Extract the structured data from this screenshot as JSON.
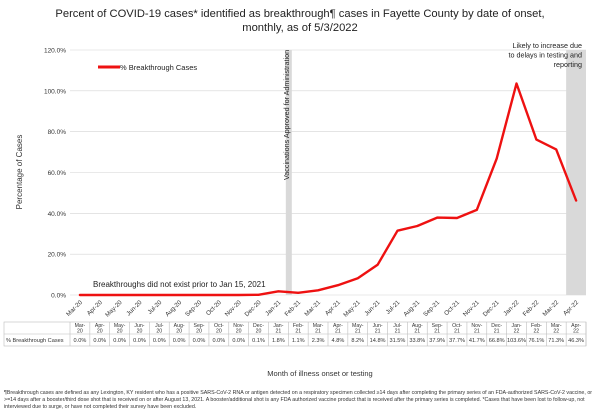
{
  "title": "Percent of COVID-19 cases* identified as breakthrough¶ cases in Fayette County by date of onset, monthly, as of 5/3/2022",
  "footnote": "¶Breakthrough cases are defined as any Lexington, KY resident who has a positive SARS-CoV-2 RNA or antigen detected on a respiratory specimen collected ≥14 days after completing the primary series of an FDA-authorized SARS-CoV-2 vaccine, or >=14 days after a booster/third dose shot that is received on or after August 13, 2021. A booster/additional shot is any FDA authorized vaccine product that is received after the primary series is completed. *Cases that have been lost to follow-up, not interviewed due to surge, or have not completed their survey have been excluded.",
  "colors": {
    "line": "#ee1111",
    "shade": "#d9d9d9",
    "grid": "#d4d4d4",
    "text": "#333333"
  },
  "chart_data": {
    "type": "line",
    "title": "Percent of COVID-19 cases* identified as breakthrough¶ cases in Fayette County by date of onset, monthly, as of 5/3/2022",
    "xlabel": "Month of illness onset or testing",
    "ylabel": "Percentage of Cases",
    "ylim": [
      0,
      120
    ],
    "yticks": [
      "0.0%",
      "20.0%",
      "40.0%",
      "60.0%",
      "80.0%",
      "100.0%",
      "120.0%"
    ],
    "grid": "horizontal",
    "legend_position": "top-left",
    "categories": [
      "Mar-20",
      "Apr-20",
      "May-20",
      "Jun-20",
      "Jul-20",
      "Aug-20",
      "Sep-20",
      "Oct-20",
      "Nov-20",
      "Dec-20",
      "Jan-21",
      "Feb-21",
      "Mar-21",
      "Apr-21",
      "May-21",
      "Jun-21",
      "Jul-21",
      "Aug-21",
      "Sep-21",
      "Oct-21",
      "Nov-21",
      "Dec-21",
      "Jan-22",
      "Feb-22",
      "Mar-22",
      "Apr-22"
    ],
    "series": [
      {
        "name": "% Breakthrough Cases",
        "values": [
          0.0,
          0.0,
          0.0,
          0.0,
          0.0,
          0.0,
          0.0,
          0.0,
          0.0,
          0.1,
          1.8,
          1.1,
          2.3,
          4.8,
          8.2,
          14.8,
          31.5,
          33.8,
          37.9,
          37.7,
          41.7,
          66.8,
          103.6,
          76.1,
          71.3,
          46.3
        ],
        "labels": [
          "0.0%",
          "0.0%",
          "0.0%",
          "0.0%",
          "0.0%",
          "0.0%",
          "0.0%",
          "0.0%",
          "0.0%",
          "0.1%",
          "1.8%",
          "1.1%",
          "2.3%",
          "4.8%",
          "8.2%",
          "14.8%",
          "31.5%",
          "33.8%",
          "37.9%",
          "37.7%",
          "41.7%",
          "66.8%",
          "103.6%",
          "76.1%",
          "71.3%",
          "46.3%"
        ]
      }
    ],
    "vertical_band_after": "Jan-21",
    "vertical_band_label": "Vaccinations Approved for Administration",
    "final_band_label": "Likely to increase due to delays in testing and reporting",
    "annotation_text": "Breakthroughs did not exist prior to Jan 15, 2021"
  }
}
